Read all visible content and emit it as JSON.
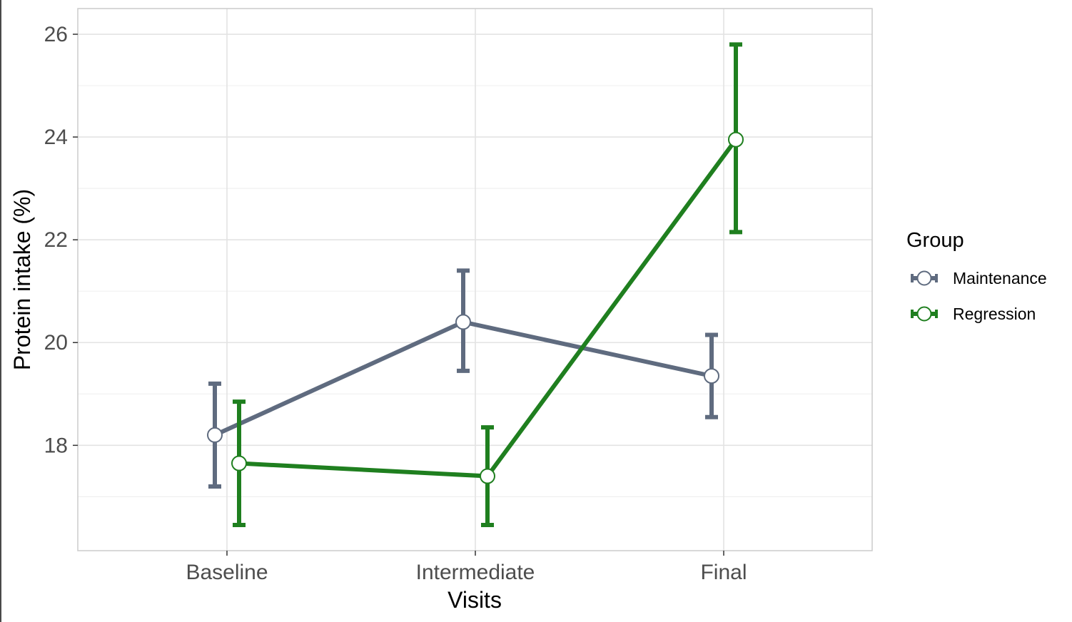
{
  "chart_data": {
    "type": "line",
    "xlabel": "Visits",
    "ylabel": "Protein intake (%)",
    "categories": [
      "Baseline",
      "Intermediate",
      "Final"
    ],
    "ylim": [
      15.95,
      26.5
    ],
    "yticks": [
      18,
      20,
      22,
      24,
      26
    ],
    "grid": true,
    "legend": {
      "title": "Group",
      "position": "right"
    },
    "series": [
      {
        "name": "Maintenance",
        "color": "#5f6b7f",
        "values": [
          18.2,
          20.4,
          19.35
        ],
        "error_low": [
          17.2,
          19.45,
          18.55
        ],
        "error_high": [
          19.2,
          21.4,
          20.15
        ]
      },
      {
        "name": "Regression",
        "color": "#1f7f1f",
        "values": [
          17.65,
          17.4,
          23.95
        ],
        "error_low": [
          16.45,
          16.45,
          22.15
        ],
        "error_high": [
          18.85,
          18.35,
          25.8
        ]
      }
    ]
  }
}
